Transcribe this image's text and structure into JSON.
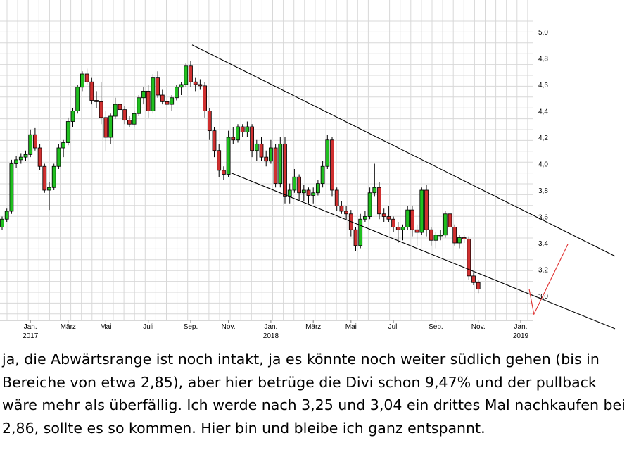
{
  "chart_data": {
    "type": "candlestick",
    "grid": true,
    "y_axis_position": "right",
    "ylim": [
      2.8,
      5.1
    ],
    "y_ticks": [
      "5,0",
      "4,8",
      "4,6",
      "4,4",
      "4,2",
      "4,0",
      "3,8",
      "3,6",
      "3,4",
      "3,2",
      "3,0"
    ],
    "y_tick_values": [
      5.0,
      4.8,
      4.6,
      4.4,
      4.2,
      4.0,
      3.8,
      3.6,
      3.4,
      3.2,
      3.0
    ],
    "x_ticks": [
      {
        "label": "Jan.",
        "year": "2017",
        "week": 6
      },
      {
        "label": "März",
        "year": "",
        "week": 14
      },
      {
        "label": "Mai",
        "year": "",
        "week": 22
      },
      {
        "label": "Juli",
        "year": "",
        "week": 31
      },
      {
        "label": "Sep.",
        "year": "",
        "week": 40
      },
      {
        "label": "Nov.",
        "year": "",
        "week": 48
      },
      {
        "label": "Jan.",
        "year": "2018",
        "week": 57
      },
      {
        "label": "März",
        "year": "",
        "week": 66
      },
      {
        "label": "Mai",
        "year": "",
        "week": 74
      },
      {
        "label": "Juli",
        "year": "",
        "week": 83
      },
      {
        "label": "Sep.",
        "year": "",
        "week": 92
      },
      {
        "label": "Nov.",
        "year": "",
        "week": 101
      },
      {
        "label": "Jan.",
        "year": "2019",
        "week": 110
      }
    ],
    "candles_weekly_ohlc": [
      [
        3.52,
        3.6,
        3.5,
        3.58
      ],
      [
        3.58,
        3.66,
        3.56,
        3.64
      ],
      [
        3.64,
        4.03,
        3.62,
        4.0
      ],
      [
        4.0,
        4.06,
        3.97,
        4.03
      ],
      [
        4.03,
        4.08,
        4.0,
        4.05
      ],
      [
        4.05,
        4.1,
        4.02,
        4.07
      ],
      [
        4.07,
        4.26,
        4.05,
        4.22
      ],
      [
        4.22,
        4.27,
        4.1,
        4.12
      ],
      [
        4.12,
        4.15,
        3.95,
        3.98
      ],
      [
        3.98,
        4.0,
        3.78,
        3.8
      ],
      [
        3.8,
        3.86,
        3.65,
        3.82
      ],
      [
        3.82,
        4.0,
        3.8,
        3.98
      ],
      [
        3.98,
        4.15,
        3.96,
        4.12
      ],
      [
        4.12,
        4.18,
        4.05,
        4.16
      ],
      [
        4.16,
        4.35,
        4.14,
        4.32
      ],
      [
        4.32,
        4.42,
        4.28,
        4.4
      ],
      [
        4.4,
        4.6,
        4.38,
        4.58
      ],
      [
        4.58,
        4.7,
        4.55,
        4.68
      ],
      [
        4.68,
        4.72,
        4.6,
        4.62
      ],
      [
        4.62,
        4.65,
        4.45,
        4.48
      ],
      [
        4.48,
        4.55,
        4.42,
        4.47
      ],
      [
        4.47,
        4.62,
        4.3,
        4.35
      ],
      [
        4.35,
        4.4,
        4.1,
        4.2
      ],
      [
        4.2,
        4.38,
        4.15,
        4.36
      ],
      [
        4.36,
        4.5,
        4.34,
        4.45
      ],
      [
        4.45,
        4.48,
        4.38,
        4.41
      ],
      [
        4.41,
        4.44,
        4.3,
        4.33
      ],
      [
        4.33,
        4.36,
        4.28,
        4.3
      ],
      [
        4.3,
        4.4,
        4.28,
        4.38
      ],
      [
        4.38,
        4.52,
        4.36,
        4.5
      ],
      [
        4.5,
        4.58,
        4.45,
        4.55
      ],
      [
        4.55,
        4.6,
        4.35,
        4.4
      ],
      [
        4.4,
        4.68,
        4.38,
        4.65
      ],
      [
        4.65,
        4.7,
        4.5,
        4.52
      ],
      [
        4.52,
        4.56,
        4.45,
        4.47
      ],
      [
        4.47,
        4.5,
        4.42,
        4.45
      ],
      [
        4.45,
        4.52,
        4.4,
        4.5
      ],
      [
        4.5,
        4.6,
        4.48,
        4.58
      ],
      [
        4.58,
        4.62,
        4.52,
        4.6
      ],
      [
        4.6,
        4.76,
        4.58,
        4.74
      ],
      [
        4.74,
        4.78,
        4.58,
        4.62
      ],
      [
        4.62,
        4.65,
        4.55,
        4.6
      ],
      [
        4.6,
        4.64,
        4.56,
        4.59
      ],
      [
        4.59,
        4.62,
        4.35,
        4.4
      ],
      [
        4.4,
        4.42,
        4.18,
        4.25
      ],
      [
        4.25,
        4.28,
        4.05,
        4.1
      ],
      [
        4.1,
        4.15,
        3.9,
        3.95
      ],
      [
        3.95,
        3.98,
        3.88,
        3.92
      ],
      [
        3.92,
        4.25,
        3.9,
        4.2
      ],
      [
        4.2,
        4.28,
        4.15,
        4.18
      ],
      [
        4.18,
        4.3,
        4.16,
        4.28
      ],
      [
        4.28,
        4.3,
        4.2,
        4.24
      ],
      [
        4.24,
        4.32,
        4.2,
        4.28
      ],
      [
        4.28,
        4.3,
        4.05,
        4.1
      ],
      [
        4.1,
        4.18,
        4.02,
        4.15
      ],
      [
        4.15,
        4.2,
        4.02,
        4.05
      ],
      [
        4.05,
        4.1,
        3.98,
        4.02
      ],
      [
        4.02,
        4.18,
        4.0,
        4.12
      ],
      [
        4.12,
        4.15,
        3.82,
        3.85
      ],
      [
        3.85,
        4.2,
        3.82,
        4.15
      ],
      [
        4.15,
        4.2,
        3.7,
        3.75
      ],
      [
        3.75,
        3.85,
        3.7,
        3.8
      ],
      [
        3.8,
        3.96,
        3.78,
        3.9
      ],
      [
        3.9,
        3.92,
        3.72,
        3.78
      ],
      [
        3.78,
        3.84,
        3.72,
        3.8
      ],
      [
        3.8,
        3.82,
        3.7,
        3.76
      ],
      [
        3.76,
        3.82,
        3.7,
        3.78
      ],
      [
        3.78,
        3.88,
        3.76,
        3.85
      ],
      [
        3.85,
        4.02,
        3.82,
        3.98
      ],
      [
        3.98,
        4.22,
        3.96,
        4.18
      ],
      [
        4.18,
        4.2,
        3.75,
        3.8
      ],
      [
        3.8,
        3.82,
        3.64,
        3.68
      ],
      [
        3.68,
        3.72,
        3.62,
        3.64
      ],
      [
        3.64,
        3.68,
        3.58,
        3.62
      ],
      [
        3.62,
        3.65,
        3.45,
        3.5
      ],
      [
        3.5,
        3.52,
        3.34,
        3.38
      ],
      [
        3.38,
        3.62,
        3.36,
        3.58
      ],
      [
        3.58,
        3.64,
        3.56,
        3.6
      ],
      [
        3.6,
        3.82,
        3.58,
        3.78
      ],
      [
        3.78,
        4.0,
        3.75,
        3.82
      ],
      [
        3.82,
        3.86,
        3.58,
        3.62
      ],
      [
        3.62,
        3.66,
        3.56,
        3.6
      ],
      [
        3.6,
        3.68,
        3.56,
        3.58
      ],
      [
        3.58,
        3.6,
        3.48,
        3.52
      ],
      [
        3.52,
        3.56,
        3.4,
        3.5
      ],
      [
        3.5,
        3.54,
        3.42,
        3.52
      ],
      [
        3.52,
        3.68,
        3.5,
        3.65
      ],
      [
        3.65,
        3.68,
        3.45,
        3.5
      ],
      [
        3.5,
        3.54,
        3.38,
        3.48
      ],
      [
        3.48,
        3.82,
        3.46,
        3.8
      ],
      [
        3.8,
        3.84,
        3.45,
        3.5
      ],
      [
        3.5,
        3.52,
        3.38,
        3.42
      ],
      [
        3.42,
        3.48,
        3.36,
        3.46
      ],
      [
        3.46,
        3.5,
        3.42,
        3.46
      ],
      [
        3.46,
        3.64,
        3.44,
        3.62
      ],
      [
        3.62,
        3.68,
        3.5,
        3.52
      ],
      [
        3.52,
        3.54,
        3.38,
        3.4
      ],
      [
        3.4,
        3.46,
        3.36,
        3.44
      ],
      [
        3.44,
        3.46,
        3.4,
        3.43
      ],
      [
        3.43,
        3.45,
        3.12,
        3.15
      ],
      [
        3.15,
        3.18,
        3.08,
        3.1
      ],
      [
        3.1,
        3.12,
        3.02,
        3.05
      ]
    ],
    "trendlines": [
      {
        "name": "upper channel",
        "points": [
          [
            40.3,
            4.9
          ],
          [
            130,
            3.3
          ]
        ]
      },
      {
        "name": "lower channel",
        "points": [
          [
            48.6,
            3.93
          ],
          [
            130,
            2.75
          ]
        ]
      }
    ],
    "projection_lines": [
      {
        "points": [
          [
            111.8,
            3.05
          ],
          [
            112.8,
            2.86
          ],
          [
            120,
            3.39
          ]
        ],
        "color": "#e03030"
      }
    ],
    "colors": {
      "up": "#20c020",
      "down": "#d03030",
      "grid": "#d8d8d8",
      "trend": "#000000"
    }
  },
  "caption": "ja, die Abwärtsrange ist noch intakt, ja es könnte noch weiter südlich gehen (bis in Bereiche von etwa 2,85), aber hier betrüge die Divi schon  9,47% und der pullback wäre mehr als überfällig. Ich werde nach 3,25 und 3,04 ein drittes Mal nachkaufen bei 2,86, sollte es so kommen. Hier bin und bleibe ich ganz entspannt."
}
